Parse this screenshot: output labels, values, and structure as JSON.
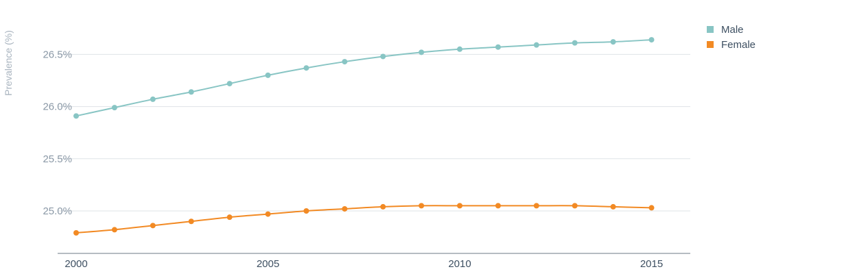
{
  "chart_data": {
    "type": "line",
    "ylabel": "Prevalence (%)",
    "xlabel": "",
    "x": [
      2000,
      2001,
      2002,
      2003,
      2004,
      2005,
      2006,
      2007,
      2008,
      2009,
      2010,
      2011,
      2012,
      2013,
      2014,
      2015
    ],
    "x_ticks": [
      "2000",
      "2005",
      "2010",
      "2015"
    ],
    "x_range": [
      2000,
      2016
    ],
    "y_ticks": [
      {
        "value": 25.0,
        "label": "25.0%"
      },
      {
        "value": 25.5,
        "label": "25.5%"
      },
      {
        "value": 26.0,
        "label": "26.0%"
      },
      {
        "value": 26.5,
        "label": "26.5%"
      }
    ],
    "ylim": [
      24.6,
      26.8
    ],
    "grid": true,
    "legend_position": "top-right",
    "series": [
      {
        "name": "Male",
        "color": "#88c5c4",
        "values": [
          25.91,
          25.99,
          26.07,
          26.14,
          26.22,
          26.3,
          26.37,
          26.43,
          26.48,
          26.52,
          26.55,
          26.57,
          26.59,
          26.61,
          26.62,
          26.64
        ]
      },
      {
        "name": "Female",
        "color": "#f28a24",
        "values": [
          24.79,
          24.82,
          24.86,
          24.9,
          24.94,
          24.97,
          25.0,
          25.02,
          25.04,
          25.05,
          25.05,
          25.05,
          25.05,
          25.05,
          25.04,
          25.03
        ]
      }
    ]
  }
}
